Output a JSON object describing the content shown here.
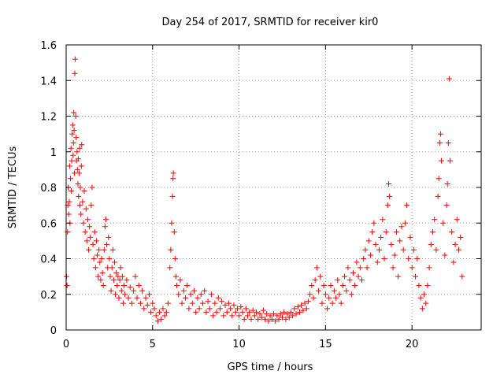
{
  "chart_data": {
    "type": "scatter",
    "title": "Day 254 of 2017, SRMTID for receiver kir0",
    "xlabel": "GPS time / hours",
    "ylabel": "SRMTID / TECUs",
    "xlim": [
      0,
      24
    ],
    "ylim": [
      0,
      1.6
    ],
    "xticks": [
      "0",
      "5",
      "10",
      "15",
      "20"
    ],
    "xtick_values": [
      0,
      5,
      10,
      15,
      20
    ],
    "yticks": [
      "0",
      "0.2",
      "0.4",
      "0.6",
      "0.8",
      "1",
      "1.2",
      "1.4",
      "1.6"
    ],
    "ytick_values": [
      0,
      0.2,
      0.4,
      0.6,
      0.8,
      1.0,
      1.2,
      1.4,
      1.6
    ],
    "grid": true,
    "marker": "+",
    "color": "#ff0000",
    "series": [
      {
        "name": "SRMTID",
        "points": [
          [
            0.02,
            0.3
          ],
          [
            0.05,
            0.25
          ],
          [
            0.08,
            0.55
          ],
          [
            0.1,
            0.7
          ],
          [
            0.12,
            0.8
          ],
          [
            0.15,
            0.65
          ],
          [
            0.18,
            0.72
          ],
          [
            0.2,
            0.92
          ],
          [
            0.22,
            0.6
          ],
          [
            0.25,
            0.85
          ],
          [
            0.28,
            1.02
          ],
          [
            0.3,
            0.78
          ],
          [
            0.32,
            0.95
          ],
          [
            0.35,
            1.1
          ],
          [
            0.38,
            1.15
          ],
          [
            0.4,
            0.98
          ],
          [
            0.42,
            1.05
          ],
          [
            0.44,
            1.22
          ],
          [
            0.46,
            1.12
          ],
          [
            0.48,
            0.88
          ],
          [
            0.5,
            1.44
          ],
          [
            0.52,
            1.52
          ],
          [
            0.55,
            1.2
          ],
          [
            0.58,
            1.08
          ],
          [
            0.6,
            0.95
          ],
          [
            0.63,
            1.0
          ],
          [
            0.65,
            0.9
          ],
          [
            0.68,
            0.82
          ],
          [
            0.7,
            0.96
          ],
          [
            0.72,
            0.75
          ],
          [
            0.75,
            0.88
          ],
          [
            0.78,
            1.02
          ],
          [
            0.8,
            0.7
          ],
          [
            0.82,
            0.8
          ],
          [
            0.85,
            0.65
          ],
          [
            0.88,
            0.92
          ],
          [
            0.9,
            1.04
          ],
          [
            0.95,
            0.72
          ],
          [
            1.0,
            0.6
          ],
          [
            1.05,
            0.78
          ],
          [
            1.1,
            0.55
          ],
          [
            1.15,
            0.68
          ],
          [
            1.2,
            0.5
          ],
          [
            1.25,
            0.62
          ],
          [
            1.3,
            0.45
          ],
          [
            1.35,
            0.58
          ],
          [
            1.4,
            0.52
          ],
          [
            1.45,
            0.7
          ],
          [
            1.5,
            0.8
          ],
          [
            1.55,
            0.48
          ],
          [
            1.6,
            0.4
          ],
          [
            1.65,
            0.55
          ],
          [
            1.7,
            0.35
          ],
          [
            1.75,
            0.5
          ],
          [
            1.8,
            0.42
          ],
          [
            1.85,
            0.3
          ],
          [
            1.9,
            0.45
          ],
          [
            1.95,
            0.38
          ],
          [
            2.0,
            0.28
          ],
          [
            2.05,
            0.4
          ],
          [
            2.1,
            0.32
          ],
          [
            2.15,
            0.25
          ],
          [
            2.2,
            0.45
          ],
          [
            2.25,
            0.58
          ],
          [
            2.3,
            0.62
          ],
          [
            2.35,
            0.48
          ],
          [
            2.4,
            0.35
          ],
          [
            2.45,
            0.52
          ],
          [
            2.5,
            0.4
          ],
          [
            2.55,
            0.3
          ],
          [
            2.6,
            0.22
          ],
          [
            2.65,
            0.35
          ],
          [
            2.7,
            0.45
          ],
          [
            2.75,
            0.28
          ],
          [
            2.8,
            0.38
          ],
          [
            2.85,
            0.2
          ],
          [
            2.9,
            0.32
          ],
          [
            2.95,
            0.25
          ],
          [
            3.0,
            0.3
          ],
          [
            3.05,
            0.18
          ],
          [
            3.1,
            0.28
          ],
          [
            3.15,
            0.35
          ],
          [
            3.2,
            0.22
          ],
          [
            3.25,
            0.3
          ],
          [
            3.3,
            0.15
          ],
          [
            3.35,
            0.25
          ],
          [
            3.4,
            0.2
          ],
          [
            3.5,
            0.28
          ],
          [
            3.6,
            0.18
          ],
          [
            3.7,
            0.24
          ],
          [
            3.8,
            0.15
          ],
          [
            3.9,
            0.22
          ],
          [
            4.0,
            0.3
          ],
          [
            4.1,
            0.18
          ],
          [
            4.2,
            0.25
          ],
          [
            4.3,
            0.15
          ],
          [
            4.4,
            0.22
          ],
          [
            4.5,
            0.12
          ],
          [
            4.6,
            0.18
          ],
          [
            4.7,
            0.14
          ],
          [
            4.8,
            0.2
          ],
          [
            4.9,
            0.1
          ],
          [
            5.0,
            0.15
          ],
          [
            5.1,
            0.12
          ],
          [
            5.2,
            0.08
          ],
          [
            5.3,
            0.05
          ],
          [
            5.4,
            0.1
          ],
          [
            5.5,
            0.06
          ],
          [
            5.6,
            0.12
          ],
          [
            5.7,
            0.08
          ],
          [
            5.8,
            0.1
          ],
          [
            5.9,
            0.15
          ],
          [
            6.0,
            0.35
          ],
          [
            6.05,
            0.45
          ],
          [
            6.1,
            0.6
          ],
          [
            6.15,
            0.75
          ],
          [
            6.18,
            0.85
          ],
          [
            6.2,
            0.88
          ],
          [
            6.25,
            0.55
          ],
          [
            6.3,
            0.4
          ],
          [
            6.35,
            0.3
          ],
          [
            6.4,
            0.25
          ],
          [
            6.5,
            0.2
          ],
          [
            6.6,
            0.28
          ],
          [
            6.7,
            0.15
          ],
          [
            6.8,
            0.22
          ],
          [
            6.9,
            0.18
          ],
          [
            7.0,
            0.25
          ],
          [
            7.1,
            0.12
          ],
          [
            7.2,
            0.2
          ],
          [
            7.3,
            0.15
          ],
          [
            7.4,
            0.22
          ],
          [
            7.5,
            0.1
          ],
          [
            7.6,
            0.18
          ],
          [
            7.7,
            0.12
          ],
          [
            7.8,
            0.2
          ],
          [
            7.9,
            0.15
          ],
          [
            8.0,
            0.22
          ],
          [
            8.1,
            0.1
          ],
          [
            8.2,
            0.16
          ],
          [
            8.3,
            0.12
          ],
          [
            8.4,
            0.2
          ],
          [
            8.5,
            0.08
          ],
          [
            8.6,
            0.15
          ],
          [
            8.7,
            0.1
          ],
          [
            8.8,
            0.18
          ],
          [
            8.9,
            0.12
          ],
          [
            9.0,
            0.16
          ],
          [
            9.1,
            0.08
          ],
          [
            9.2,
            0.14
          ],
          [
            9.3,
            0.1
          ],
          [
            9.4,
            0.15
          ],
          [
            9.5,
            0.12
          ],
          [
            9.6,
            0.08
          ],
          [
            9.7,
            0.14
          ],
          [
            9.8,
            0.1
          ],
          [
            9.9,
            0.12
          ],
          [
            10.0,
            0.08
          ],
          [
            10.1,
            0.13
          ],
          [
            10.2,
            0.1
          ],
          [
            10.3,
            0.06
          ],
          [
            10.4,
            0.12
          ],
          [
            10.5,
            0.08
          ],
          [
            10.6,
            0.1
          ],
          [
            10.7,
            0.06
          ],
          [
            10.8,
            0.11
          ],
          [
            10.9,
            0.08
          ],
          [
            11.0,
            0.1
          ],
          [
            11.1,
            0.06
          ],
          [
            11.2,
            0.09
          ],
          [
            11.3,
            0.07
          ],
          [
            11.4,
            0.11
          ],
          [
            11.5,
            0.06
          ],
          [
            11.6,
            0.09
          ],
          [
            11.7,
            0.05
          ],
          [
            11.8,
            0.08
          ],
          [
            11.9,
            0.06
          ],
          [
            12.0,
            0.09
          ],
          [
            12.1,
            0.05
          ],
          [
            12.2,
            0.08
          ],
          [
            12.3,
            0.06
          ],
          [
            12.4,
            0.09
          ],
          [
            12.5,
            0.07
          ],
          [
            12.6,
            0.1
          ],
          [
            12.7,
            0.06
          ],
          [
            12.8,
            0.09
          ],
          [
            12.9,
            0.07
          ],
          [
            13.0,
            0.1
          ],
          [
            13.1,
            0.08
          ],
          [
            13.2,
            0.12
          ],
          [
            13.3,
            0.09
          ],
          [
            13.4,
            0.13
          ],
          [
            13.5,
            0.1
          ],
          [
            13.6,
            0.14
          ],
          [
            13.7,
            0.11
          ],
          [
            13.8,
            0.15
          ],
          [
            13.9,
            0.12
          ],
          [
            14.0,
            0.16
          ],
          [
            14.1,
            0.2
          ],
          [
            14.2,
            0.25
          ],
          [
            14.3,
            0.18
          ],
          [
            14.4,
            0.28
          ],
          [
            14.5,
            0.35
          ],
          [
            14.6,
            0.22
          ],
          [
            14.7,
            0.3
          ],
          [
            14.8,
            0.15
          ],
          [
            14.9,
            0.25
          ],
          [
            15.0,
            0.2
          ],
          [
            15.1,
            0.12
          ],
          [
            15.2,
            0.18
          ],
          [
            15.3,
            0.25
          ],
          [
            15.4,
            0.15
          ],
          [
            15.5,
            0.22
          ],
          [
            15.6,
            0.18
          ],
          [
            15.7,
            0.28
          ],
          [
            15.8,
            0.2
          ],
          [
            15.9,
            0.15
          ],
          [
            16.0,
            0.25
          ],
          [
            16.1,
            0.3
          ],
          [
            16.2,
            0.22
          ],
          [
            16.3,
            0.35
          ],
          [
            16.4,
            0.28
          ],
          [
            16.5,
            0.2
          ],
          [
            16.6,
            0.32
          ],
          [
            16.7,
            0.25
          ],
          [
            16.8,
            0.38
          ],
          [
            16.9,
            0.3
          ],
          [
            17.0,
            0.35
          ],
          [
            17.1,
            0.28
          ],
          [
            17.2,
            0.4
          ],
          [
            17.3,
            0.45
          ],
          [
            17.4,
            0.35
          ],
          [
            17.5,
            0.5
          ],
          [
            17.6,
            0.42
          ],
          [
            17.7,
            0.55
          ],
          [
            17.8,
            0.6
          ],
          [
            17.9,
            0.48
          ],
          [
            18.0,
            0.38
          ],
          [
            18.1,
            0.45
          ],
          [
            18.2,
            0.52
          ],
          [
            18.3,
            0.62
          ],
          [
            18.4,
            0.4
          ],
          [
            18.5,
            0.55
          ],
          [
            18.6,
            0.7
          ],
          [
            18.65,
            0.82
          ],
          [
            18.7,
            0.75
          ],
          [
            18.8,
            0.48
          ],
          [
            18.9,
            0.35
          ],
          [
            19.0,
            0.42
          ],
          [
            19.1,
            0.55
          ],
          [
            19.2,
            0.3
          ],
          [
            19.3,
            0.5
          ],
          [
            19.4,
            0.58
          ],
          [
            19.5,
            0.45
          ],
          [
            19.6,
            0.6
          ],
          [
            19.7,
            0.7
          ],
          [
            19.8,
            0.4
          ],
          [
            19.9,
            0.52
          ],
          [
            20.0,
            0.35
          ],
          [
            20.1,
            0.45
          ],
          [
            20.2,
            0.3
          ],
          [
            20.3,
            0.4
          ],
          [
            20.4,
            0.25
          ],
          [
            20.5,
            0.18
          ],
          [
            20.6,
            0.12
          ],
          [
            20.7,
            0.2
          ],
          [
            20.8,
            0.15
          ],
          [
            20.9,
            0.25
          ],
          [
            21.0,
            0.35
          ],
          [
            21.1,
            0.48
          ],
          [
            21.2,
            0.55
          ],
          [
            21.3,
            0.62
          ],
          [
            21.4,
            0.45
          ],
          [
            21.5,
            0.75
          ],
          [
            21.55,
            0.85
          ],
          [
            21.6,
            1.05
          ],
          [
            21.65,
            1.1
          ],
          [
            21.7,
            0.95
          ],
          [
            21.8,
            0.6
          ],
          [
            21.9,
            0.42
          ],
          [
            22.0,
            0.7
          ],
          [
            22.05,
            0.82
          ],
          [
            22.1,
            1.05
          ],
          [
            22.15,
            1.41
          ],
          [
            22.2,
            0.95
          ],
          [
            22.3,
            0.55
          ],
          [
            22.4,
            0.38
          ],
          [
            22.5,
            0.48
          ],
          [
            22.6,
            0.62
          ],
          [
            22.7,
            0.45
          ],
          [
            22.8,
            0.52
          ],
          [
            22.9,
            0.3
          ]
        ]
      }
    ]
  }
}
